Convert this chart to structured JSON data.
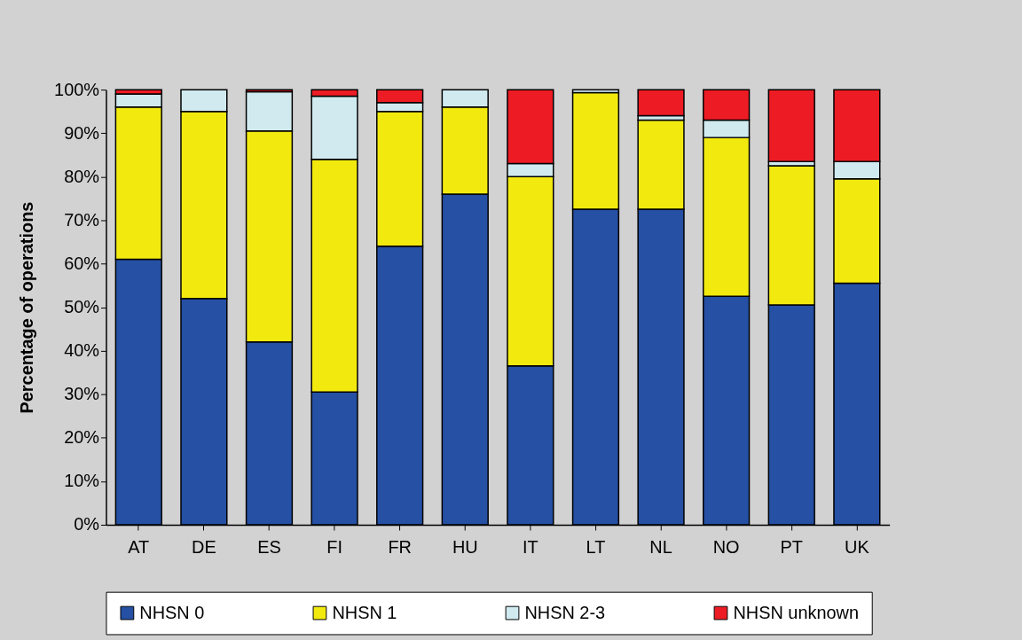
{
  "chart_data": {
    "type": "bar",
    "stacked": true,
    "ylabel": "Percentage of operations",
    "categories": [
      "AT",
      "DE",
      "ES",
      "FI",
      "FR",
      "HU",
      "IT",
      "LT",
      "NL",
      "NO",
      "PT",
      "UK"
    ],
    "series": [
      {
        "name": "NHSN 0",
        "color": "#2550a3",
        "values": [
          61,
          52,
          42,
          30.5,
          64,
          76,
          36.5,
          72.5,
          72.5,
          52.5,
          50.5,
          55.5
        ]
      },
      {
        "name": "NHSN 1",
        "color": "#f2ea0f",
        "values": [
          35,
          43,
          48.5,
          53.5,
          31,
          20,
          43.5,
          26.8,
          20.5,
          36.5,
          32,
          24
        ]
      },
      {
        "name": "NHSN 2-3",
        "color": "#d0eaf0",
        "values": [
          3,
          5,
          9,
          14.5,
          2,
          4,
          3,
          0.7,
          1,
          4,
          1,
          4
        ]
      },
      {
        "name": "NHSN unknown",
        "color": "#ed1c24",
        "values": [
          1,
          0,
          0.5,
          1.5,
          3,
          0,
          17,
          0,
          6,
          7,
          16.5,
          16.5
        ]
      }
    ],
    "ylim": [
      0,
      100
    ],
    "yticks": [
      {
        "value": 0,
        "label": "0%"
      },
      {
        "value": 10,
        "label": "10%"
      },
      {
        "value": 20,
        "label": "20%"
      },
      {
        "value": 30,
        "label": "30%"
      },
      {
        "value": 40,
        "label": "40%"
      },
      {
        "value": 50,
        "label": "50%"
      },
      {
        "value": 60,
        "label": "60%"
      },
      {
        "value": 70,
        "label": "70%"
      },
      {
        "value": 80,
        "label": "80%"
      },
      {
        "value": 90,
        "label": "90%"
      },
      {
        "value": 100,
        "label": "100%"
      }
    ],
    "grid": false,
    "legend": "bottom"
  }
}
